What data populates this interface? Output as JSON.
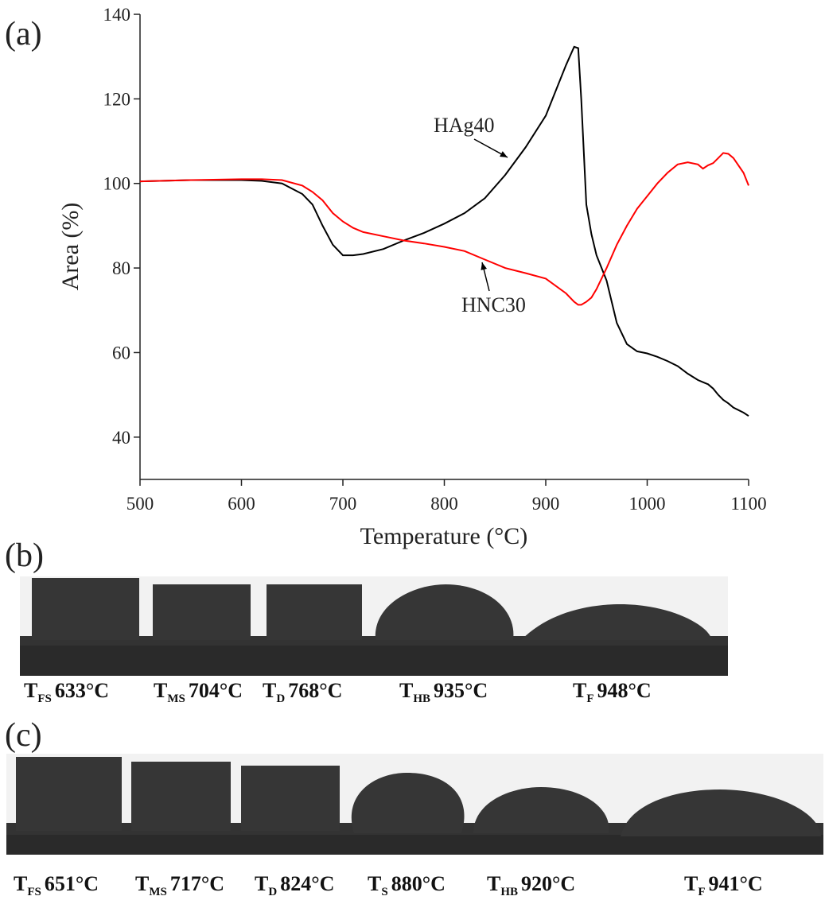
{
  "chart_data": {
    "type": "line",
    "panel_label": "(a)",
    "xlabel": "Temperature (°C)",
    "ylabel": "Area (%)",
    "x": [
      500,
      550,
      600,
      620,
      640,
      660,
      670,
      680,
      690,
      700,
      710,
      720,
      740,
      760,
      780,
      800,
      820,
      840,
      860,
      880,
      900,
      920,
      928,
      932,
      935,
      940,
      945,
      950,
      960,
      970,
      980,
      990,
      1000,
      1010,
      1020,
      1030,
      1040,
      1050,
      1055,
      1060,
      1065,
      1070,
      1075,
      1080,
      1085,
      1095,
      1100
    ],
    "series": [
      {
        "name": "HAg40",
        "color": "#000000",
        "values": [
          100.5,
          100.8,
          100.8,
          100.6,
          100,
          97.5,
          95,
          90,
          85.5,
          83,
          83,
          83.3,
          84.5,
          86.5,
          88.3,
          90.5,
          93,
          96.5,
          102,
          108.5,
          116,
          128,
          132.3,
          132,
          120,
          95,
          88,
          83,
          77,
          67,
          62,
          60.3,
          59.8,
          59,
          58,
          56.8,
          55,
          53.5,
          53,
          52.5,
          51.5,
          50,
          48.8,
          48,
          47,
          45.8,
          45
        ]
      },
      {
        "name": "HNC30",
        "color": "#ff0000",
        "values": [
          100.5,
          100.8,
          101,
          101,
          100.8,
          99.5,
          98,
          96,
          93,
          91,
          89.5,
          88.5,
          87.5,
          86.5,
          85.8,
          85,
          84,
          82,
          80,
          78.8,
          77.5,
          74,
          72,
          71.3,
          71.3,
          72,
          73,
          75,
          80,
          85.5,
          90,
          94,
          97,
          100,
          102.5,
          104.5,
          105,
          104.5,
          103.5,
          104.3,
          104.8,
          106,
          107.2,
          107,
          106,
          102.5,
          99.5
        ]
      }
    ],
    "xlim": [
      500,
      1100
    ],
    "xticks": [
      500,
      600,
      700,
      800,
      900,
      1000,
      1100
    ],
    "ylim": [
      30,
      140
    ],
    "yticks": [
      40,
      60,
      80,
      100,
      120,
      140
    ]
  },
  "panels": [
    {
      "label": "(b)",
      "captions": [
        {
          "symbol": "T",
          "subscript": "FS",
          "value": "633°C"
        },
        {
          "symbol": "T",
          "subscript": "MS",
          "value": "704°C"
        },
        {
          "symbol": "T",
          "subscript": "D",
          "value": "768°C"
        },
        {
          "symbol": "T",
          "subscript": "HB",
          "value": "935°C"
        },
        {
          "symbol": "T",
          "subscript": "F",
          "value": "948°C"
        }
      ]
    },
    {
      "label": "(c)",
      "captions": [
        {
          "symbol": "T",
          "subscript": "FS",
          "value": "651°C"
        },
        {
          "symbol": "T",
          "subscript": "MS",
          "value": "717°C"
        },
        {
          "symbol": "T",
          "subscript": "D",
          "value": "824°C"
        },
        {
          "symbol": "T",
          "subscript": "S",
          "value": "880°C"
        },
        {
          "symbol": "T",
          "subscript": "HB",
          "value": "920°C"
        },
        {
          "symbol": "T",
          "subscript": "F",
          "value": "941°C"
        }
      ]
    }
  ]
}
